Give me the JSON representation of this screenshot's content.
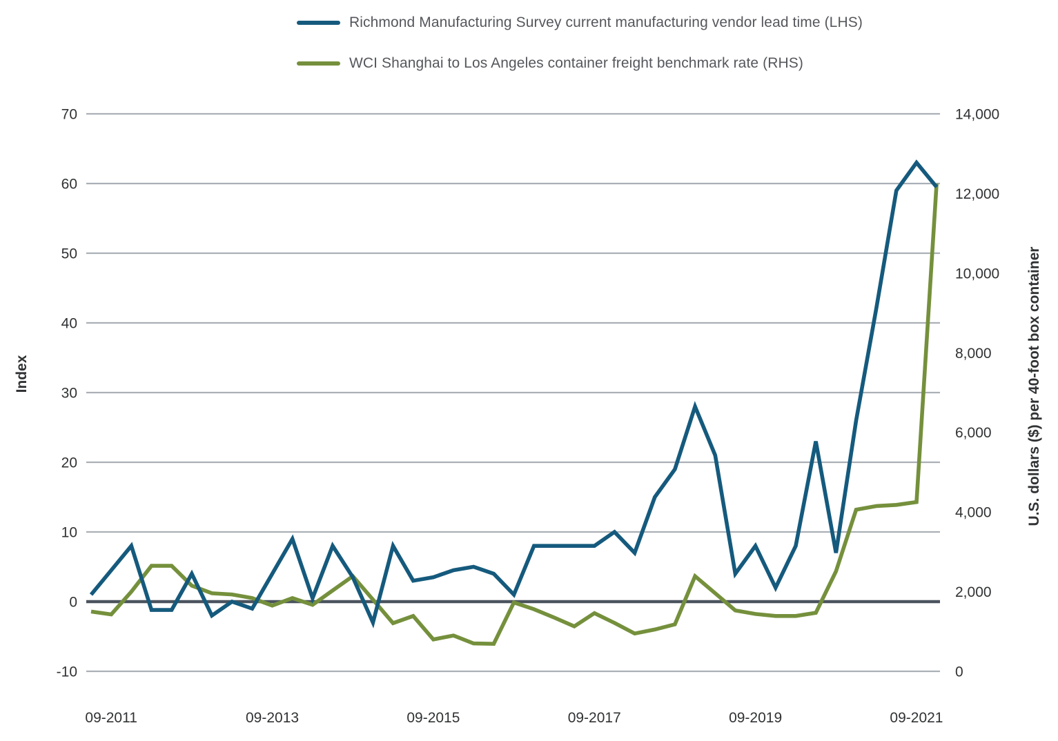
{
  "legend": {
    "items": [
      {
        "label": "Richmond Manufacturing Survey current manufacturing vendor lead time (LHS)",
        "color": "#155A7D"
      },
      {
        "label": "WCI Shanghai to Los Angeles container freight benchmark rate (RHS)",
        "color": "#75903C"
      }
    ]
  },
  "axes": {
    "left": {
      "title": "Index",
      "tick_labels": [
        "70",
        "60",
        "50",
        "40",
        "30",
        "20",
        "10",
        "0",
        "-10"
      ]
    },
    "right": {
      "title": "U.S. dollars ($) per 40-foot box container",
      "tick_labels": [
        "14,000",
        "12,000",
        "10,000",
        "8,000",
        "6,000",
        "4,000",
        "2,000",
        "0"
      ]
    },
    "x": {
      "tick_labels": [
        "09-2011",
        "09-2013",
        "09-2015",
        "09-2017",
        "09-2019",
        "09-2021"
      ]
    }
  },
  "colors": {
    "gridline": "#AAB0B6",
    "zero_line": "#4B545E",
    "tick_text": "#303234"
  },
  "chart_data": {
    "type": "line",
    "x": [
      "06-2011",
      "09-2011",
      "12-2011",
      "03-2012",
      "06-2012",
      "09-2012",
      "12-2012",
      "03-2013",
      "06-2013",
      "09-2013",
      "12-2013",
      "03-2014",
      "06-2014",
      "09-2014",
      "12-2014",
      "03-2015",
      "06-2015",
      "09-2015",
      "12-2015",
      "03-2016",
      "06-2016",
      "09-2016",
      "12-2016",
      "03-2017",
      "06-2017",
      "09-2017",
      "12-2017",
      "03-2018",
      "06-2018",
      "09-2018",
      "12-2018",
      "03-2019",
      "06-2019",
      "09-2019",
      "12-2019",
      "03-2020",
      "06-2020",
      "09-2020",
      "12-2020",
      "03-2021",
      "06-2021",
      "09-2021",
      "12-2021"
    ],
    "ylim_left": [
      -10,
      70
    ],
    "ylim_right": [
      0,
      14000
    ],
    "grid": "horizontal",
    "legend_position": "top",
    "series": [
      {
        "name": "Richmond Manufacturing Survey current manufacturing vendor lead time (LHS)",
        "axis": "left",
        "color": "#155A7D",
        "values": [
          1,
          4.5,
          8,
          -1.2,
          -1.2,
          4,
          -2,
          0,
          -1,
          4,
          9,
          0.5,
          8,
          3.5,
          -3,
          8,
          3,
          3.5,
          4.5,
          5,
          4,
          1,
          8,
          8,
          8,
          8,
          10,
          7,
          15,
          19,
          28,
          21,
          4,
          8,
          2,
          8,
          23,
          7,
          26,
          42,
          59,
          63,
          59.5
        ]
      },
      {
        "name": "WCI Shanghai to Los Angeles container freight benchmark rate (RHS)",
        "axis": "right",
        "color": "#75903C",
        "values": [
          1500,
          1430,
          2000,
          2650,
          2650,
          2150,
          1960,
          1930,
          1840,
          1650,
          1840,
          1670,
          2030,
          2390,
          1800,
          1210,
          1390,
          800,
          900,
          700,
          690,
          1730,
          1560,
          1350,
          1130,
          1460,
          1215,
          950,
          1050,
          1180,
          2390,
          1960,
          1530,
          1440,
          1390,
          1390,
          1470,
          2510,
          4060,
          4150,
          4180,
          4250,
          12250
        ]
      }
    ]
  }
}
